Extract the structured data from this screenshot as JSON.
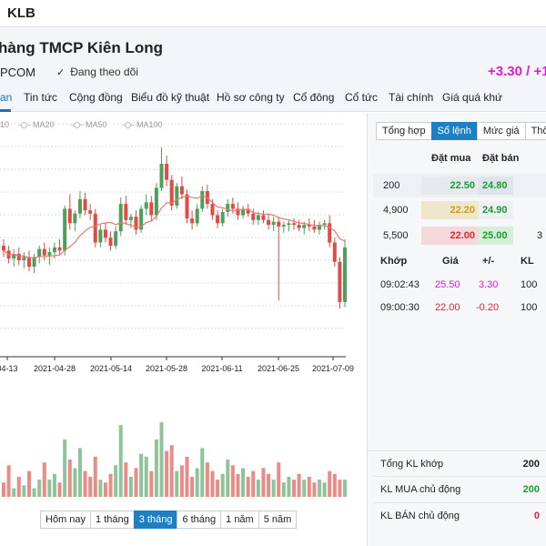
{
  "topbar": {
    "ticker": "KLB"
  },
  "header": {
    "company_name": "hàng TMCP Kiên Long",
    "exchange": "PCOM",
    "follow_label": "Đang theo dõi",
    "change": "+3.30 / +1"
  },
  "tabs": [
    {
      "label": "an",
      "active": true
    },
    {
      "label": "Tin tức"
    },
    {
      "label": "Cộng đồng"
    },
    {
      "label": "Biểu đồ kỹ thuật"
    },
    {
      "label": "Hồ sơ công ty"
    },
    {
      "label": "Cổ đông"
    },
    {
      "label": "Cổ tức"
    },
    {
      "label": "Tài chính"
    },
    {
      "label": "Giá quá khứ"
    }
  ],
  "legend": [
    "10",
    "MA20",
    "MA50",
    "MA100"
  ],
  "chart_data": {
    "type": "candlestick",
    "x_ticks": [
      "04-13",
      "2021-04-28",
      "2021-05-14",
      "2021-05-28",
      "2021-06-11",
      "2021-06-25",
      "2021-07-09"
    ],
    "ylim": [
      15.7,
      30.3
    ],
    "colors": {
      "up": "#4f9e5c",
      "down": "#e14a45",
      "up_volume": "#8fc49b",
      "down_volume": "#e98b86",
      "ma": "#e87a74"
    },
    "candles": [
      {
        "o": 22.6,
        "h": 23.0,
        "l": 21.9,
        "c": 22.3
      },
      {
        "o": 22.3,
        "h": 22.6,
        "l": 21.5,
        "c": 21.8
      },
      {
        "o": 21.8,
        "h": 22.4,
        "l": 21.3,
        "c": 22.1
      },
      {
        "o": 22.1,
        "h": 22.5,
        "l": 21.4,
        "c": 21.7
      },
      {
        "o": 21.7,
        "h": 22.2,
        "l": 21.2,
        "c": 21.9
      },
      {
        "o": 21.9,
        "h": 22.3,
        "l": 21.0,
        "c": 21.3
      },
      {
        "o": 21.3,
        "h": 22.1,
        "l": 20.9,
        "c": 21.9
      },
      {
        "o": 21.9,
        "h": 22.6,
        "l": 21.5,
        "c": 22.4
      },
      {
        "o": 22.4,
        "h": 22.8,
        "l": 21.7,
        "c": 22.0
      },
      {
        "o": 22.0,
        "h": 22.5,
        "l": 21.4,
        "c": 22.2
      },
      {
        "o": 22.2,
        "h": 22.8,
        "l": 21.8,
        "c": 22.5
      },
      {
        "o": 22.5,
        "h": 23.0,
        "l": 22.0,
        "c": 22.3
      },
      {
        "o": 22.3,
        "h": 25.1,
        "l": 22.0,
        "c": 24.9
      },
      {
        "o": 24.9,
        "h": 25.8,
        "l": 23.6,
        "c": 24.0
      },
      {
        "o": 24.0,
        "h": 24.8,
        "l": 23.5,
        "c": 24.6
      },
      {
        "o": 24.6,
        "h": 26.0,
        "l": 24.3,
        "c": 25.5
      },
      {
        "o": 25.5,
        "h": 25.9,
        "l": 24.5,
        "c": 24.8
      },
      {
        "o": 24.8,
        "h": 25.2,
        "l": 24.2,
        "c": 24.6
      },
      {
        "o": 24.6,
        "h": 24.9,
        "l": 22.5,
        "c": 22.8
      },
      {
        "o": 22.8,
        "h": 23.9,
        "l": 22.5,
        "c": 23.6
      },
      {
        "o": 23.6,
        "h": 24.0,
        "l": 22.8,
        "c": 23.1
      },
      {
        "o": 23.1,
        "h": 23.5,
        "l": 22.3,
        "c": 22.6
      },
      {
        "o": 22.6,
        "h": 23.8,
        "l": 22.4,
        "c": 23.5
      },
      {
        "o": 23.5,
        "h": 25.6,
        "l": 23.2,
        "c": 25.2
      },
      {
        "o": 25.2,
        "h": 25.7,
        "l": 23.9,
        "c": 24.2
      },
      {
        "o": 24.2,
        "h": 24.6,
        "l": 23.7,
        "c": 24.4
      },
      {
        "o": 24.4,
        "h": 24.8,
        "l": 23.3,
        "c": 23.6
      },
      {
        "o": 23.6,
        "h": 25.1,
        "l": 23.4,
        "c": 24.9
      },
      {
        "o": 24.9,
        "h": 25.8,
        "l": 24.5,
        "c": 25.3
      },
      {
        "o": 25.3,
        "h": 25.7,
        "l": 24.1,
        "c": 24.5
      },
      {
        "o": 24.5,
        "h": 26.5,
        "l": 24.2,
        "c": 26.2
      },
      {
        "o": 26.2,
        "h": 28.7,
        "l": 26.0,
        "c": 27.7
      },
      {
        "o": 27.7,
        "h": 28.2,
        "l": 26.3,
        "c": 26.7
      },
      {
        "o": 26.7,
        "h": 27.0,
        "l": 24.8,
        "c": 25.1
      },
      {
        "o": 25.1,
        "h": 26.5,
        "l": 24.9,
        "c": 26.3
      },
      {
        "o": 26.3,
        "h": 26.9,
        "l": 25.5,
        "c": 25.8
      },
      {
        "o": 25.8,
        "h": 26.1,
        "l": 24.0,
        "c": 24.3
      },
      {
        "o": 24.3,
        "h": 24.8,
        "l": 23.6,
        "c": 24.0
      },
      {
        "o": 24.0,
        "h": 25.2,
        "l": 23.8,
        "c": 24.9
      },
      {
        "o": 24.9,
        "h": 26.3,
        "l": 24.7,
        "c": 26.0
      },
      {
        "o": 26.0,
        "h": 26.4,
        "l": 24.9,
        "c": 25.2
      },
      {
        "o": 25.2,
        "h": 25.5,
        "l": 24.2,
        "c": 24.5
      },
      {
        "o": 24.5,
        "h": 24.8,
        "l": 23.7,
        "c": 24.0
      },
      {
        "o": 24.0,
        "h": 24.9,
        "l": 23.8,
        "c": 24.7
      },
      {
        "o": 24.7,
        "h": 25.5,
        "l": 24.4,
        "c": 25.2
      },
      {
        "o": 25.2,
        "h": 25.6,
        "l": 24.6,
        "c": 24.9
      },
      {
        "o": 24.9,
        "h": 25.3,
        "l": 24.2,
        "c": 24.5
      },
      {
        "o": 24.5,
        "h": 25.1,
        "l": 24.3,
        "c": 24.9
      },
      {
        "o": 24.9,
        "h": 25.2,
        "l": 24.4,
        "c": 24.6
      },
      {
        "o": 24.6,
        "h": 24.9,
        "l": 23.9,
        "c": 24.2
      },
      {
        "o": 24.2,
        "h": 24.7,
        "l": 23.9,
        "c": 24.5
      },
      {
        "o": 24.5,
        "h": 24.8,
        "l": 24.0,
        "c": 24.2
      },
      {
        "o": 24.2,
        "h": 24.6,
        "l": 23.6,
        "c": 23.9
      },
      {
        "o": 23.9,
        "h": 24.4,
        "l": 23.5,
        "c": 24.1
      },
      {
        "o": 24.1,
        "h": 24.4,
        "l": 19.2,
        "c": 23.8
      },
      {
        "o": 23.8,
        "h": 24.1,
        "l": 23.4,
        "c": 23.9
      },
      {
        "o": 23.9,
        "h": 24.2,
        "l": 23.5,
        "c": 24.0
      },
      {
        "o": 24.0,
        "h": 24.3,
        "l": 23.6,
        "c": 23.9
      },
      {
        "o": 23.9,
        "h": 24.2,
        "l": 23.5,
        "c": 23.7
      },
      {
        "o": 23.7,
        "h": 24.1,
        "l": 23.3,
        "c": 23.9
      },
      {
        "o": 23.9,
        "h": 24.3,
        "l": 23.5,
        "c": 23.8
      },
      {
        "o": 23.8,
        "h": 24.2,
        "l": 23.4,
        "c": 23.6
      },
      {
        "o": 23.6,
        "h": 24.1,
        "l": 23.3,
        "c": 23.9
      },
      {
        "o": 23.9,
        "h": 24.2,
        "l": 23.6,
        "c": 24.0
      },
      {
        "o": 24.0,
        "h": 24.5,
        "l": 22.5,
        "c": 22.8
      },
      {
        "o": 22.8,
        "h": 23.1,
        "l": 21.3,
        "c": 21.6
      },
      {
        "o": 21.6,
        "h": 21.9,
        "l": 18.7,
        "c": 19.1
      },
      {
        "o": 19.1,
        "h": 23.0,
        "l": 18.8,
        "c": 22.5
      }
    ],
    "volumes": [
      5,
      11,
      3,
      7,
      4,
      9,
      3,
      6,
      12,
      6,
      8,
      5,
      20,
      13,
      10,
      17,
      9,
      7,
      14,
      6,
      5,
      8,
      11,
      25,
      12,
      7,
      10,
      15,
      14,
      9,
      20,
      26,
      16,
      18,
      9,
      11,
      14,
      7,
      10,
      17,
      12,
      9,
      6,
      8,
      13,
      11,
      8,
      10,
      7,
      9,
      6,
      10,
      8,
      6,
      12,
      5,
      7,
      6,
      8,
      6,
      7,
      5,
      6,
      5,
      9,
      8,
      6,
      6
    ],
    "ma_window": 10,
    "grid": true
  },
  "periods": [
    {
      "label": "Hôm nay"
    },
    {
      "label": "1 tháng"
    },
    {
      "label": "3 tháng",
      "active": true
    },
    {
      "label": "6 tháng"
    },
    {
      "label": "1 năm"
    },
    {
      "label": "5 năm"
    }
  ],
  "right_tabs": [
    {
      "label": "Tổng hợp"
    },
    {
      "label": "Sổ lệnh",
      "active": true
    },
    {
      "label": "Mức giá"
    },
    {
      "label": "Thố"
    }
  ],
  "orderbook": {
    "headers": {
      "bid": "Đặt mua",
      "ask": "Đặt bán"
    },
    "rows": [
      {
        "vol": "200",
        "bid": "22.50",
        "ask": "24.80",
        "edge": ""
      },
      {
        "vol": "4,900",
        "bid": "22.20",
        "ask": "24.90",
        "edge": ""
      },
      {
        "vol": "5,500",
        "bid": "22.00",
        "ask": "25.00",
        "edge": "3"
      }
    ]
  },
  "trades": {
    "headers": {
      "time": "Khớp",
      "price": "Giá",
      "change": "+/-",
      "vol": "KL"
    },
    "rows": [
      {
        "time": "09:02:43",
        "price": "25.50",
        "change": "3.30",
        "vol": "100"
      },
      {
        "time": "09:00:30",
        "price": "22.00",
        "change": "-0.20",
        "vol": "100"
      }
    ]
  },
  "summary": {
    "total_label": "Tổng KL khớp",
    "total_value": "200",
    "buy_label": "KL MUA chủ động",
    "buy_value": "200",
    "sell_label": "KL BÁN chủ động",
    "sell_value": "0"
  }
}
